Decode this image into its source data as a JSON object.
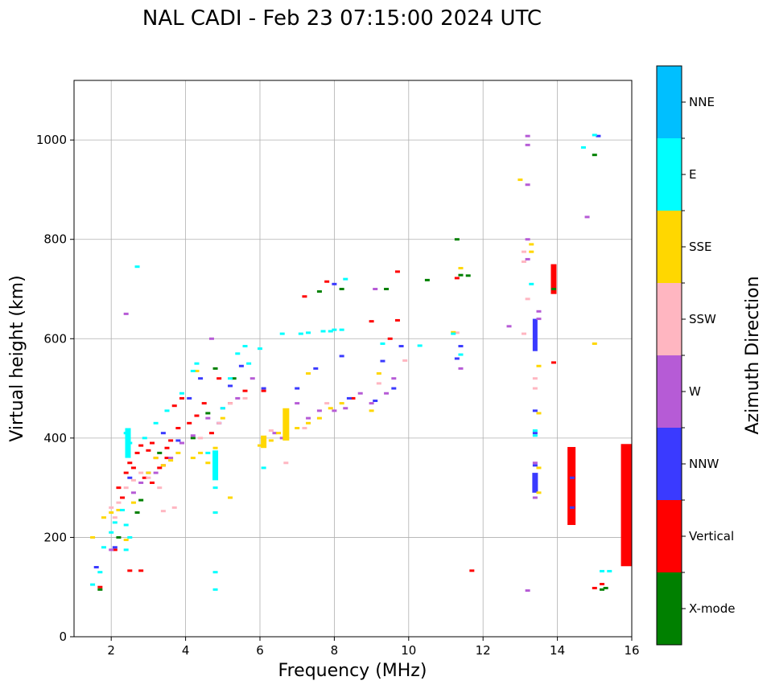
{
  "chart_data": {
    "type": "scatter",
    "title": "NAL CADI - Feb 23 07:15:00 2024 UTC",
    "xlabel": "Frequency (MHz)",
    "ylabel": "Virtual height (km)",
    "xlim": [
      1,
      16
    ],
    "ylim": [
      0,
      1120
    ],
    "xticks": [
      2,
      4,
      6,
      8,
      10,
      12,
      14,
      16
    ],
    "yticks": [
      0,
      200,
      400,
      600,
      800,
      1000
    ],
    "grid": true,
    "colorbar": {
      "label": "Azimuth Direction",
      "categories": [
        {
          "name": "X-mode",
          "color": "#008000"
        },
        {
          "name": "Vertical",
          "color": "#ff0000"
        },
        {
          "name": "NNW",
          "color": "#3a3aff"
        },
        {
          "name": "W",
          "color": "#b65bd6"
        },
        {
          "name": "SSW",
          "color": "#ffb6c1"
        },
        {
          "name": "SSE",
          "color": "#ffd700"
        },
        {
          "name": "E",
          "color": "#00ffff"
        },
        {
          "name": "NNE",
          "color": "#00bfff"
        }
      ]
    },
    "series": [
      {
        "name": "Vertical",
        "points": [
          [
            1.7,
            100
          ],
          [
            2.1,
            175
          ],
          [
            2.2,
            300
          ],
          [
            2.4,
            330
          ],
          [
            2.5,
            350
          ],
          [
            2.6,
            340
          ],
          [
            2.7,
            370
          ],
          [
            2.8,
            385
          ],
          [
            2.9,
            320
          ],
          [
            3.0,
            375
          ],
          [
            3.1,
            390
          ],
          [
            3.2,
            360
          ],
          [
            3.3,
            340
          ],
          [
            3.4,
            345
          ],
          [
            3.5,
            380
          ],
          [
            3.6,
            395
          ],
          [
            3.7,
            465
          ],
          [
            3.8,
            420
          ],
          [
            3.9,
            480
          ],
          [
            4.1,
            430
          ],
          [
            4.3,
            445
          ],
          [
            4.5,
            470
          ],
          [
            4.7,
            410
          ],
          [
            4.9,
            520
          ],
          [
            5.2,
            470
          ],
          [
            5.6,
            495
          ],
          [
            6.1,
            495
          ],
          [
            7.2,
            685
          ],
          [
            7.8,
            715
          ],
          [
            8.5,
            480
          ],
          [
            9.0,
            635
          ],
          [
            9.5,
            600
          ],
          [
            9.7,
            637
          ],
          [
            9.7,
            735
          ],
          [
            11.3,
            722
          ],
          [
            11.7,
            133
          ],
          [
            13.9,
            552
          ],
          [
            13.9,
            720
          ],
          [
            13.9,
            745
          ],
          [
            14.4,
            320
          ],
          [
            15.0,
            98
          ],
          [
            15.2,
            106
          ],
          [
            2.5,
            133
          ],
          [
            2.8,
            133
          ],
          [
            2.3,
            280
          ],
          [
            3.1,
            310
          ],
          [
            3.5,
            360
          ]
        ],
        "segments": [
          [
            13.9,
            13.9,
            690,
            750,
            3
          ],
          [
            14.38,
            14.38,
            225,
            382,
            6
          ],
          [
            15.85,
            15.85,
            142,
            388,
            9
          ]
        ]
      },
      {
        "name": "X-mode",
        "points": [
          [
            1.7,
            95
          ],
          [
            2.2,
            200
          ],
          [
            2.7,
            250
          ],
          [
            2.8,
            275
          ],
          [
            3.3,
            370
          ],
          [
            4.2,
            400
          ],
          [
            4.6,
            450
          ],
          [
            4.8,
            540
          ],
          [
            5.3,
            520
          ],
          [
            7.6,
            695
          ],
          [
            8.2,
            700
          ],
          [
            9.4,
            700
          ],
          [
            10.5,
            718
          ],
          [
            11.4,
            728
          ],
          [
            11.6,
            727
          ],
          [
            11.3,
            800
          ],
          [
            13.9,
            700
          ],
          [
            15.0,
            970
          ],
          [
            15.2,
            95
          ],
          [
            15.3,
            98
          ]
        ]
      },
      {
        "name": "NNW",
        "points": [
          [
            1.6,
            140
          ],
          [
            2.1,
            180
          ],
          [
            2.5,
            320
          ],
          [
            3.0,
            330
          ],
          [
            3.4,
            410
          ],
          [
            3.8,
            395
          ],
          [
            4.1,
            480
          ],
          [
            4.4,
            520
          ],
          [
            4.9,
            430
          ],
          [
            5.2,
            505
          ],
          [
            5.5,
            545
          ],
          [
            6.1,
            500
          ],
          [
            7.0,
            500
          ],
          [
            7.5,
            540
          ],
          [
            8.0,
            710
          ],
          [
            8.2,
            565
          ],
          [
            8.4,
            480
          ],
          [
            9.1,
            475
          ],
          [
            9.3,
            555
          ],
          [
            9.6,
            500
          ],
          [
            9.8,
            585
          ],
          [
            11.3,
            560
          ],
          [
            11.4,
            585
          ],
          [
            13.4,
            295
          ],
          [
            13.4,
            310
          ],
          [
            13.4,
            345
          ],
          [
            13.4,
            410
          ],
          [
            13.4,
            455
          ],
          [
            14.4,
            260
          ],
          [
            14.4,
            320
          ],
          [
            15.1,
            1008
          ]
        ],
        "segments": [
          [
            13.4,
            13.4,
            290,
            330,
            3
          ],
          [
            13.4,
            13.4,
            575,
            640,
            2
          ]
        ]
      },
      {
        "name": "W",
        "points": [
          [
            2.0,
            175
          ],
          [
            2.4,
            650
          ],
          [
            2.6,
            290
          ],
          [
            2.8,
            310
          ],
          [
            3.2,
            330
          ],
          [
            3.6,
            360
          ],
          [
            3.9,
            390
          ],
          [
            4.2,
            405
          ],
          [
            4.6,
            440
          ],
          [
            4.7,
            600
          ],
          [
            5.0,
            460
          ],
          [
            5.4,
            480
          ],
          [
            5.8,
            520
          ],
          [
            6.4,
            410
          ],
          [
            6.6,
            400
          ],
          [
            7.0,
            470
          ],
          [
            7.3,
            440
          ],
          [
            7.6,
            455
          ],
          [
            8.0,
            455
          ],
          [
            8.3,
            460
          ],
          [
            8.7,
            490
          ],
          [
            9.0,
            470
          ],
          [
            9.1,
            700
          ],
          [
            9.4,
            490
          ],
          [
            9.6,
            520
          ],
          [
            11.4,
            540
          ],
          [
            13.2,
            1008
          ],
          [
            13.2,
            990
          ],
          [
            13.2,
            910
          ],
          [
            13.2,
            800
          ],
          [
            13.2,
            760
          ],
          [
            13.2,
            93
          ],
          [
            13.5,
            640
          ],
          [
            13.5,
            655
          ],
          [
            12.7,
            625
          ],
          [
            14.8,
            845
          ],
          [
            13.4,
            350
          ],
          [
            13.4,
            280
          ]
        ]
      },
      {
        "name": "SSW",
        "points": [
          [
            2.0,
            260
          ],
          [
            2.1,
            240
          ],
          [
            2.2,
            270
          ],
          [
            2.4,
            300
          ],
          [
            2.6,
            315
          ],
          [
            2.8,
            330
          ],
          [
            3.0,
            320
          ],
          [
            3.3,
            300
          ],
          [
            3.4,
            253
          ],
          [
            3.7,
            260
          ],
          [
            4.4,
            400
          ],
          [
            4.9,
            430
          ],
          [
            5.2,
            470
          ],
          [
            5.6,
            480
          ],
          [
            6.3,
            415
          ],
          [
            6.7,
            350
          ],
          [
            7.2,
            420
          ],
          [
            7.8,
            470
          ],
          [
            9.2,
            510
          ],
          [
            9.9,
            556
          ],
          [
            13.1,
            610
          ],
          [
            13.1,
            775
          ],
          [
            13.1,
            755
          ],
          [
            13.2,
            680
          ],
          [
            13.4,
            520
          ],
          [
            13.4,
            500
          ],
          [
            11.3,
            612
          ]
        ]
      },
      {
        "name": "SSE",
        "points": [
          [
            1.5,
            200
          ],
          [
            1.8,
            240
          ],
          [
            2.0,
            250
          ],
          [
            2.2,
            255
          ],
          [
            2.4,
            195
          ],
          [
            2.6,
            270
          ],
          [
            3.0,
            330
          ],
          [
            3.2,
            360
          ],
          [
            3.4,
            345
          ],
          [
            3.6,
            355
          ],
          [
            3.8,
            370
          ],
          [
            4.2,
            360
          ],
          [
            4.4,
            370
          ],
          [
            4.6,
            350
          ],
          [
            4.8,
            380
          ],
          [
            5.0,
            440
          ],
          [
            5.2,
            280
          ],
          [
            6.0,
            385
          ],
          [
            6.3,
            395
          ],
          [
            6.5,
            410
          ],
          [
            6.7,
            420
          ],
          [
            6.7,
            445
          ],
          [
            7.0,
            420
          ],
          [
            7.3,
            430
          ],
          [
            7.6,
            440
          ],
          [
            7.9,
            460
          ],
          [
            8.2,
            470
          ],
          [
            9.0,
            455
          ],
          [
            9.2,
            530
          ],
          [
            11.2,
            613
          ],
          [
            11.4,
            742
          ],
          [
            13.0,
            920
          ],
          [
            13.3,
            790
          ],
          [
            13.3,
            775
          ],
          [
            13.5,
            545
          ],
          [
            13.5,
            450
          ],
          [
            13.5,
            340
          ],
          [
            13.5,
            290
          ],
          [
            15.0,
            590
          ],
          [
            4.3,
            535
          ],
          [
            7.3,
            530
          ],
          [
            4.8,
            250
          ]
        ],
        "segments": [
          [
            6.7,
            6.7,
            395,
            460,
            4
          ],
          [
            6.1,
            6.1,
            380,
            405,
            3
          ]
        ]
      },
      {
        "name": "E",
        "points": [
          [
            1.5,
            105
          ],
          [
            1.7,
            130
          ],
          [
            1.8,
            180
          ],
          [
            2.0,
            210
          ],
          [
            2.1,
            230
          ],
          [
            2.3,
            255
          ],
          [
            2.4,
            225
          ],
          [
            2.4,
            175
          ],
          [
            2.5,
            390
          ],
          [
            2.7,
            745
          ],
          [
            2.9,
            400
          ],
          [
            3.2,
            430
          ],
          [
            3.5,
            455
          ],
          [
            3.9,
            490
          ],
          [
            4.2,
            535
          ],
          [
            4.3,
            550
          ],
          [
            4.6,
            370
          ],
          [
            4.8,
            300
          ],
          [
            4.8,
            250
          ],
          [
            4.8,
            130
          ],
          [
            4.8,
            95
          ],
          [
            5.0,
            460
          ],
          [
            5.2,
            520
          ],
          [
            5.4,
            570
          ],
          [
            5.6,
            585
          ],
          [
            5.7,
            550
          ],
          [
            6.0,
            580
          ],
          [
            6.1,
            340
          ],
          [
            6.6,
            610
          ],
          [
            7.1,
            610
          ],
          [
            7.3,
            612
          ],
          [
            7.7,
            615
          ],
          [
            7.9,
            615
          ],
          [
            8.0,
            618
          ],
          [
            8.2,
            618
          ],
          [
            8.3,
            720
          ],
          [
            9.3,
            590
          ],
          [
            10.3,
            586
          ],
          [
            11.2,
            610
          ],
          [
            11.4,
            568
          ],
          [
            13.3,
            710
          ],
          [
            13.4,
            415
          ],
          [
            13.4,
            405
          ],
          [
            14.7,
            985
          ],
          [
            15.2,
            132
          ],
          [
            15.4,
            132
          ],
          [
            15.0,
            1010
          ],
          [
            2.4,
            410
          ],
          [
            2.5,
            200
          ]
        ],
        "segments": [
          [
            4.8,
            4.8,
            315,
            375,
            3
          ],
          [
            2.45,
            2.45,
            360,
            420,
            3
          ]
        ]
      }
    ]
  }
}
